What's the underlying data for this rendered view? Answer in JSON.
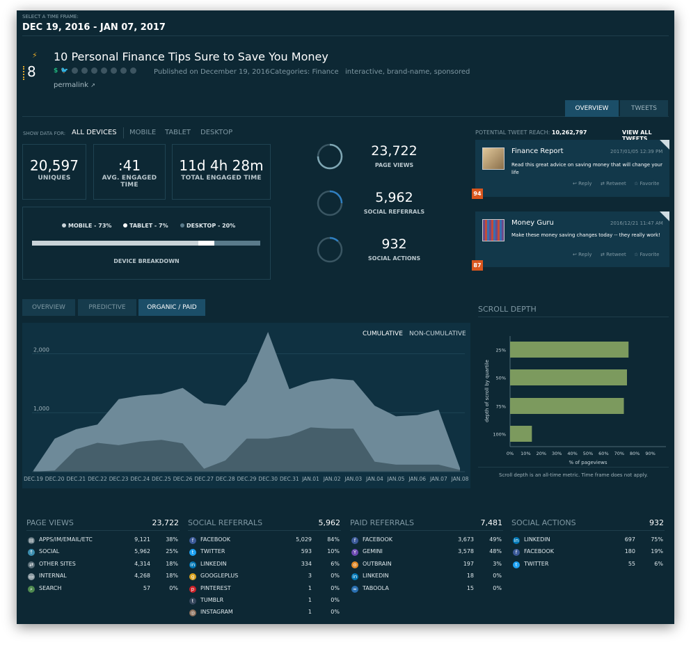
{
  "header": {
    "time_frame_label": "SELECT A TIME FRAME:",
    "date_range": "DEC 19, 2016 - JAN 07, 2017"
  },
  "article": {
    "score": "8",
    "title": "10 Personal Finance Tips Sure to Save You Money",
    "published": "Published on December 19, 2016",
    "categories": "Categories: Finance",
    "tags": "interactive, brand-name, sponsored",
    "permalink": "permalink"
  },
  "view_tabs": {
    "overview": "OVERVIEW",
    "tweets": "TWEETS"
  },
  "device_filter": {
    "label": "SHOW DATA FOR:",
    "options": [
      "ALL DEVICES",
      "MOBILE",
      "TABLET",
      "DESKTOP"
    ],
    "selected": "ALL DEVICES"
  },
  "metrics": {
    "uniques": {
      "value": "20,597",
      "label": "UNIQUES"
    },
    "avg_engaged": {
      "value": ":41",
      "label": "AVG. ENGAGED TIME"
    },
    "total_engaged": {
      "value": "11d 4h 28m",
      "label": "TOTAL ENGAGED TIME"
    }
  },
  "device_breakdown": {
    "title": "DEVICE BREAKDOWN",
    "mobile": "MOBILE - 73%",
    "tablet": "TABLET - 7%",
    "desktop": "DESKTOP - 20%",
    "mobile_pct": 73,
    "tablet_pct": 7,
    "desktop_pct": 20,
    "colors": {
      "mobile": "#c9d3d8",
      "tablet": "#ffffff",
      "desktop": "#5a7b8b"
    }
  },
  "circle_metrics": [
    {
      "value": "23,722",
      "label": "PAGE VIEWS",
      "fraction": 0.75
    },
    {
      "value": "5,962",
      "label": "SOCIAL REFERRALS",
      "fraction": 0.25
    },
    {
      "value": "932",
      "label": "SOCIAL ACTIONS",
      "fraction": 0.12
    }
  ],
  "tweets": {
    "reach_label": "POTENTIAL TWEET REACH:",
    "reach_value": "10,262,797",
    "view_all": "VIEW ALL TWEETS",
    "items": [
      {
        "name": "Finance Report",
        "date": "2017/01/05 12:39 PM",
        "text": "Read this great advice on saving money that will change your life",
        "reply": "Reply",
        "retweet": "Retweet",
        "favorite": "Favorite",
        "badge": "94"
      },
      {
        "name": "Money Guru",
        "date": "2016/12/21 11:47 AM",
        "text": "Make these money saving changes today -- they really work!",
        "reply": "Reply",
        "retweet": "Retweet",
        "favorite": "Favorite",
        "badge": "87"
      }
    ]
  },
  "chart_tabs": {
    "overview": "OVERVIEW",
    "predictive": "PREDICTIVE",
    "organic_paid": "ORGANIC / PAID"
  },
  "chart_toggle": {
    "cumulative": "CUMULATIVE",
    "non_cumulative": "NON-CUMULATIVE"
  },
  "chart_data": [
    {
      "type": "area",
      "x": [
        "DEC.19",
        "DEC.20",
        "DEC.21",
        "DEC.22",
        "DEC.23",
        "DEC.24",
        "DEC.25",
        "DEC.26",
        "DEC.27",
        "DEC.28",
        "DEC.29",
        "DEC.30",
        "DEC.31",
        "JAN.01",
        "JAN.02",
        "JAN.03",
        "JAN.04",
        "JAN.05",
        "JAN.06",
        "JAN.07",
        "JAN.08"
      ],
      "yticks": [
        "1,000",
        "2,000"
      ],
      "ylim": [
        0,
        2100
      ],
      "series": [
        {
          "values": [
            20,
            560,
            720,
            800,
            1230,
            1290,
            1320,
            1420,
            1160,
            1120,
            1530,
            2370,
            1400,
            1530,
            1580,
            1550,
            1120,
            940,
            960,
            1050,
            60
          ],
          "color": "#6e8a99"
        },
        {
          "values": [
            0,
            20,
            380,
            490,
            450,
            510,
            540,
            480,
            50,
            190,
            560,
            560,
            610,
            750,
            730,
            730,
            170,
            120,
            120,
            120,
            30
          ],
          "color": "#465f6b"
        }
      ]
    },
    {
      "type": "bar",
      "title": "SCROLL DEPTH",
      "categories": [
        "25%",
        "50%",
        "75%",
        "100%"
      ],
      "values": [
        76,
        75,
        73,
        14
      ],
      "xticks": [
        "0%",
        "10%",
        "20%",
        "30%",
        "40%",
        "50%",
        "60%",
        "70%",
        "80%",
        "90%"
      ],
      "xlim": [
        0,
        100
      ],
      "xlabel": "% of pageviews",
      "ylabel": "depth of scroll by quartile",
      "note": "Scroll depth is an all-time metric. Time frame does not apply.",
      "color": "#7c9a5e"
    }
  ],
  "tables": [
    {
      "title": "PAGE VIEWS",
      "total": "23,722",
      "rows": [
        {
          "icon": "apps-icon",
          "name": "APPS/IM/EMAIL/ETC",
          "count": "9,121",
          "pct": "38%"
        },
        {
          "icon": "social-icon",
          "name": "SOCIAL",
          "count": "5,962",
          "pct": "25%"
        },
        {
          "icon": "link-icon",
          "name": "OTHER SITES",
          "count": "4,314",
          "pct": "18%"
        },
        {
          "icon": "internal-icon",
          "name": "INTERNAL",
          "count": "4,268",
          "pct": "18%"
        },
        {
          "icon": "search-icon",
          "name": "SEARCH",
          "count": "57",
          "pct": "0%"
        }
      ]
    },
    {
      "title": "SOCIAL REFERRALS",
      "total": "5,962",
      "rows": [
        {
          "icon": "facebook-icon",
          "name": "FACEBOOK",
          "count": "5,029",
          "pct": "84%"
        },
        {
          "icon": "twitter-icon",
          "name": "TWITTER",
          "count": "593",
          "pct": "10%"
        },
        {
          "icon": "linkedin-icon",
          "name": "LINKEDIN",
          "count": "334",
          "pct": "6%"
        },
        {
          "icon": "googleplus-icon",
          "name": "GOOGLEPLUS",
          "count": "3",
          "pct": "0%"
        },
        {
          "icon": "pinterest-icon",
          "name": "PINTEREST",
          "count": "1",
          "pct": "0%"
        },
        {
          "icon": "tumblr-icon",
          "name": "TUMBLR",
          "count": "1",
          "pct": "0%"
        },
        {
          "icon": "instagram-icon",
          "name": "INSTAGRAM",
          "count": "1",
          "pct": "0%"
        }
      ]
    },
    {
      "title": "PAID REFERRALS",
      "total": "7,481",
      "rows": [
        {
          "icon": "facebook-icon",
          "name": "FACEBOOK",
          "count": "3,673",
          "pct": "49%"
        },
        {
          "icon": "gemini-icon",
          "name": "GEMINI",
          "count": "3,578",
          "pct": "48%"
        },
        {
          "icon": "outbrain-icon",
          "name": "OUTBRAIN",
          "count": "197",
          "pct": "3%"
        },
        {
          "icon": "linkedin-icon",
          "name": "LINKEDIN",
          "count": "18",
          "pct": "0%"
        },
        {
          "icon": "taboola-icon",
          "name": "TABOOLA",
          "count": "15",
          "pct": "0%"
        }
      ]
    },
    {
      "title": "SOCIAL ACTIONS",
      "total": "932",
      "rows": [
        {
          "icon": "linkedin-icon",
          "name": "LINKEDIN",
          "count": "697",
          "pct": "75%"
        },
        {
          "icon": "facebook-icon",
          "name": "FACEBOOK",
          "count": "180",
          "pct": "19%"
        },
        {
          "icon": "twitter-icon",
          "name": "TWITTER",
          "count": "55",
          "pct": "6%"
        }
      ]
    }
  ]
}
